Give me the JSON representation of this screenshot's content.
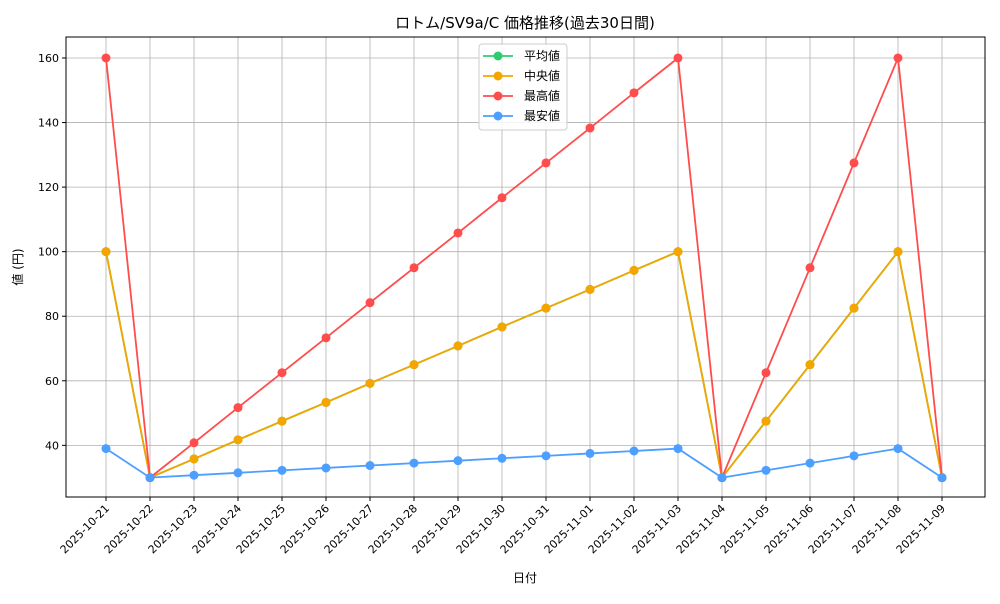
{
  "chart_data": {
    "type": "line",
    "title": "ロトム/SV9a/C 価格推移(過去30日間)",
    "xlabel": "日付",
    "ylabel": "値 (円)",
    "ylim": [
      24,
      166.5
    ],
    "yticks": [
      40,
      60,
      80,
      100,
      120,
      140,
      160
    ],
    "grid": true,
    "legend_position": "top-center",
    "x": [
      "2025-10-21",
      "2025-10-22",
      "2025-10-23",
      "2025-10-24",
      "2025-10-25",
      "2025-10-26",
      "2025-10-27",
      "2025-10-28",
      "2025-10-29",
      "2025-10-30",
      "2025-10-31",
      "2025-11-01",
      "2025-11-02",
      "2025-11-03",
      "2025-11-04",
      "2025-11-05",
      "2025-11-06",
      "2025-11-07",
      "2025-11-08",
      "2025-11-09"
    ],
    "series": [
      {
        "name": "平均値",
        "color": "#2ecc71",
        "values": [
          100,
          30,
          35.8,
          41.7,
          47.5,
          53.3,
          59.2,
          65,
          70.8,
          76.7,
          82.5,
          88.3,
          94.2,
          100,
          30,
          47.5,
          65,
          82.5,
          100,
          30
        ]
      },
      {
        "name": "中央値",
        "color": "#f5a500",
        "values": [
          100,
          30,
          35.8,
          41.7,
          47.5,
          53.3,
          59.2,
          65,
          70.8,
          76.7,
          82.5,
          88.3,
          94.2,
          100,
          30,
          47.5,
          65,
          82.5,
          100,
          30
        ]
      },
      {
        "name": "最高値",
        "color": "#ff4d4d",
        "values": [
          160,
          30,
          40.8,
          51.7,
          62.5,
          73.3,
          84.2,
          95,
          105.8,
          116.7,
          127.5,
          138.3,
          149.2,
          160,
          30,
          62.5,
          95,
          127.5,
          160,
          30
        ]
      },
      {
        "name": "最安値",
        "color": "#4d9fff",
        "values": [
          39,
          30,
          30.75,
          31.5,
          32.25,
          33,
          33.75,
          34.5,
          35.25,
          36,
          36.75,
          37.5,
          38.25,
          39,
          30,
          32.25,
          34.5,
          36.75,
          39,
          30
        ]
      }
    ]
  }
}
